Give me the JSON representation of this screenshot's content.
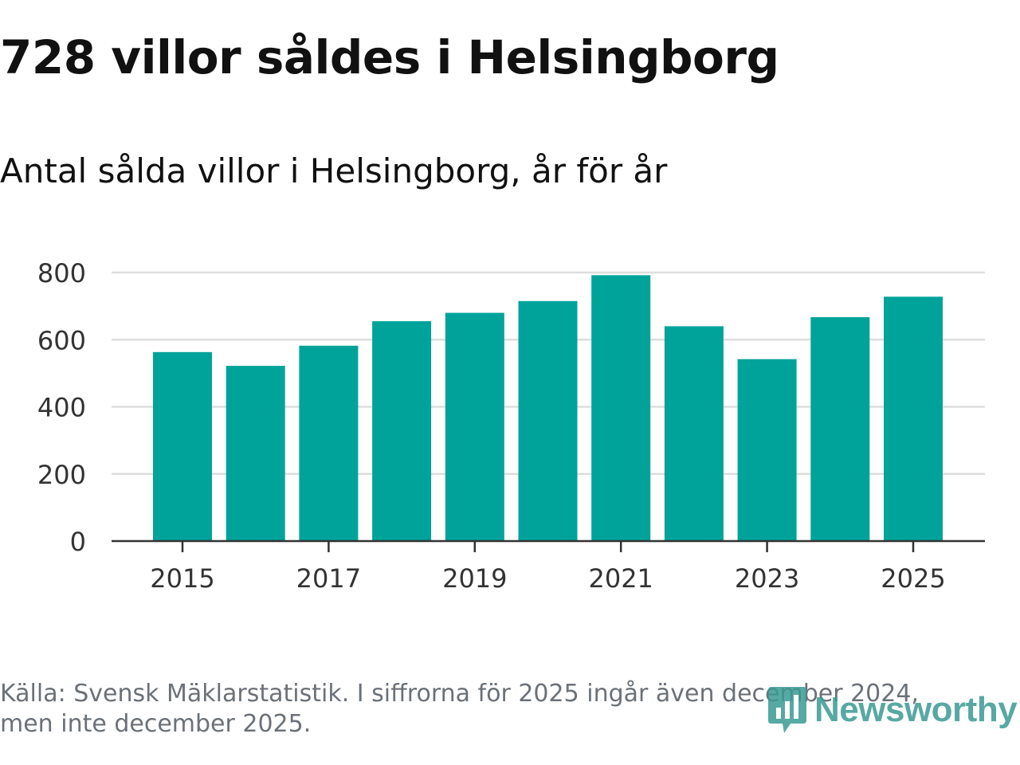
{
  "header": {
    "title": "728 villor såldes i Helsingborg",
    "subtitle": "Antal sålda villor i Helsingborg, år för år"
  },
  "footer": {
    "source_line1": "Källa: Svensk Mäklarstatistik. I siffrorna för 2025 ingår även december 2024,",
    "source_line2": "men inte december 2025."
  },
  "logo": {
    "text": "Newsworthy",
    "color": "#3a9a93",
    "icon": "newsworthy-logo-icon"
  },
  "colors": {
    "bar": "#00a39a",
    "grid": "#dddddd",
    "axis": "#333333",
    "tick_text": "#333333"
  },
  "chart_data": {
    "type": "bar",
    "title": "Antal sålda villor i Helsingborg, år för år",
    "xlabel": "",
    "ylabel": "",
    "categories": [
      "2015",
      "2016",
      "2017",
      "2018",
      "2019",
      "2020",
      "2021",
      "2022",
      "2023",
      "2024",
      "2025"
    ],
    "values": [
      563,
      522,
      582,
      655,
      680,
      715,
      792,
      640,
      542,
      667,
      728
    ],
    "ylim": [
      0,
      800
    ],
    "y_ticks": [
      0,
      200,
      400,
      600,
      800
    ],
    "x_tick_labels": [
      "2015",
      "2017",
      "2019",
      "2021",
      "2023",
      "2025"
    ],
    "grid": true
  }
}
